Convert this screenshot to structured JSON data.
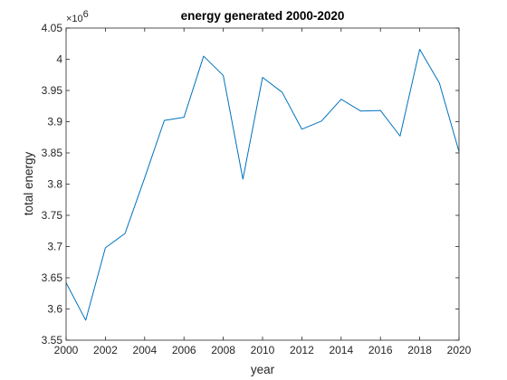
{
  "chart_data": {
    "type": "line",
    "title": "energy generated 2000-2020",
    "xlabel": "year",
    "ylabel": "total energy",
    "exponent_base": "×10",
    "exponent_power": "6",
    "xlim": [
      2000,
      2020
    ],
    "ylim": [
      3.55,
      4.05
    ],
    "y_multiplier": 1000000,
    "x_ticks": [
      2000,
      2002,
      2004,
      2006,
      2008,
      2010,
      2012,
      2014,
      2016,
      2018,
      2020
    ],
    "y_ticks": [
      "3.55",
      "3.6",
      "3.65",
      "3.7",
      "3.75",
      "3.8",
      "3.85",
      "3.9",
      "3.95",
      "4",
      "4.05"
    ],
    "grid": false,
    "line_color": "#0072bd",
    "series": [
      {
        "x": [
          2000,
          2001,
          2002,
          2003,
          2004,
          2005,
          2006,
          2007,
          2008,
          2009,
          2010,
          2011,
          2012,
          2013,
          2014,
          2015,
          2016,
          2017,
          2018,
          2019,
          2020
        ],
        "y": [
          3.642,
          3.582,
          3.698,
          3.721,
          3.81,
          3.902,
          3.907,
          4.005,
          3.974,
          3.808,
          3.971,
          3.947,
          3.888,
          3.901,
          3.936,
          3.917,
          3.918,
          3.877,
          4.016,
          3.962,
          3.852
        ]
      }
    ]
  }
}
